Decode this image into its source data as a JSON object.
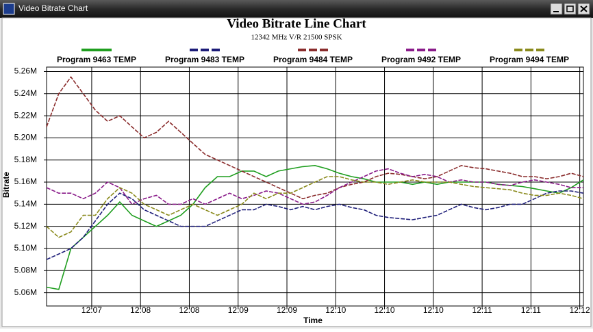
{
  "window": {
    "title": "Video Bitrate Chart"
  },
  "chart_data": {
    "type": "line",
    "title": "Video Bitrate Line Chart",
    "subtitle": "12342 MHz V/R 21500 SPSK",
    "x_label": "Time",
    "y_label": "Bitrate",
    "grid": true,
    "legend_position": "top",
    "x": [
      0,
      1,
      2,
      3,
      4,
      5,
      6,
      7,
      8,
      9,
      10,
      11,
      12,
      13,
      14,
      15,
      16,
      17,
      18,
      19,
      20,
      21,
      22,
      23,
      24,
      25,
      26,
      27,
      28,
      29,
      30,
      31,
      32,
      33,
      34,
      35,
      36,
      37,
      38,
      39,
      40,
      41,
      42,
      43,
      44
    ],
    "xlim": [
      0,
      44
    ],
    "xticks": [
      {
        "value": 3.7,
        "label": "12:07"
      },
      {
        "value": 7.7,
        "label": "12:08"
      },
      {
        "value": 11.7,
        "label": "12:08"
      },
      {
        "value": 15.7,
        "label": "12:09"
      },
      {
        "value": 19.7,
        "label": "12:09"
      },
      {
        "value": 23.7,
        "label": "12:10"
      },
      {
        "value": 27.7,
        "label": "12:10"
      },
      {
        "value": 31.7,
        "label": "12:10"
      },
      {
        "value": 35.7,
        "label": "12:11"
      },
      {
        "value": 39.7,
        "label": "12:11"
      },
      {
        "value": 43.7,
        "label": "12:12"
      }
    ],
    "ylim": [
      5.048,
      5.264
    ],
    "yticks": [
      {
        "value": 5.06,
        "label": "5.06M"
      },
      {
        "value": 5.08,
        "label": "5.08M"
      },
      {
        "value": 5.1,
        "label": "5.10M"
      },
      {
        "value": 5.12,
        "label": "5.12M"
      },
      {
        "value": 5.14,
        "label": "5.14M"
      },
      {
        "value": 5.16,
        "label": "5.16M"
      },
      {
        "value": 5.18,
        "label": "5.18M"
      },
      {
        "value": 5.2,
        "label": "5.20M"
      },
      {
        "value": 5.22,
        "label": "5.22M"
      },
      {
        "value": 5.24,
        "label": "5.24M"
      },
      {
        "value": 5.26,
        "label": "5.26M"
      }
    ],
    "series": [
      {
        "name": "Program 9463 TEMP",
        "color": "#1f9e1f",
        "values": [
          5.065,
          5.063,
          5.1,
          5.11,
          5.12,
          5.13,
          5.142,
          5.13,
          5.125,
          5.12,
          5.125,
          5.13,
          5.14,
          5.155,
          5.165,
          5.165,
          5.17,
          5.17,
          5.165,
          5.17,
          5.172,
          5.174,
          5.175,
          5.172,
          5.168,
          5.165,
          5.163,
          5.16,
          5.16,
          5.16,
          5.158,
          5.16,
          5.158,
          5.16,
          5.16,
          5.16,
          5.16,
          5.158,
          5.157,
          5.156,
          5.154,
          5.152,
          5.15,
          5.155,
          5.162
        ]
      },
      {
        "name": "Program 9483 TEMP",
        "color": "#1c1c78",
        "values": [
          5.09,
          5.095,
          5.1,
          5.11,
          5.125,
          5.14,
          5.15,
          5.145,
          5.135,
          5.13,
          5.125,
          5.12,
          5.12,
          5.12,
          5.125,
          5.13,
          5.135,
          5.135,
          5.14,
          5.138,
          5.135,
          5.138,
          5.135,
          5.138,
          5.14,
          5.137,
          5.135,
          5.13,
          5.128,
          5.127,
          5.126,
          5.128,
          5.13,
          5.135,
          5.14,
          5.137,
          5.135,
          5.137,
          5.14,
          5.14,
          5.145,
          5.15,
          5.152,
          5.152,
          5.15
        ]
      },
      {
        "name": "Program 9484 TEMP",
        "color": "#8a2c2c",
        "values": [
          5.21,
          5.24,
          5.255,
          5.24,
          5.225,
          5.215,
          5.22,
          5.21,
          5.2,
          5.205,
          5.215,
          5.205,
          5.195,
          5.185,
          5.18,
          5.175,
          5.17,
          5.165,
          5.16,
          5.155,
          5.15,
          5.145,
          5.148,
          5.15,
          5.155,
          5.158,
          5.16,
          5.165,
          5.168,
          5.167,
          5.165,
          5.163,
          5.165,
          5.17,
          5.175,
          5.173,
          5.172,
          5.17,
          5.168,
          5.165,
          5.165,
          5.163,
          5.165,
          5.168,
          5.165
        ]
      },
      {
        "name": "Program 9492 TEMP",
        "color": "#8a1c8a",
        "values": [
          5.155,
          5.15,
          5.15,
          5.145,
          5.15,
          5.16,
          5.155,
          5.14,
          5.145,
          5.148,
          5.14,
          5.14,
          5.145,
          5.14,
          5.145,
          5.15,
          5.145,
          5.148,
          5.152,
          5.15,
          5.145,
          5.14,
          5.142,
          5.148,
          5.155,
          5.16,
          5.165,
          5.17,
          5.172,
          5.168,
          5.165,
          5.167,
          5.165,
          5.16,
          5.162,
          5.16,
          5.16,
          5.158,
          5.157,
          5.16,
          5.162,
          5.16,
          5.158,
          5.155,
          5.155
        ]
      },
      {
        "name": "Program 9494 TEMP",
        "color": "#8a8a1c",
        "values": [
          5.12,
          5.11,
          5.115,
          5.13,
          5.13,
          5.145,
          5.155,
          5.15,
          5.14,
          5.135,
          5.13,
          5.135,
          5.14,
          5.135,
          5.13,
          5.135,
          5.14,
          5.15,
          5.145,
          5.15,
          5.15,
          5.155,
          5.16,
          5.165,
          5.165,
          5.162,
          5.16,
          5.16,
          5.158,
          5.16,
          5.162,
          5.16,
          5.16,
          5.16,
          5.158,
          5.156,
          5.155,
          5.154,
          5.153,
          5.15,
          5.148,
          5.148,
          5.15,
          5.148,
          5.145
        ]
      }
    ]
  }
}
